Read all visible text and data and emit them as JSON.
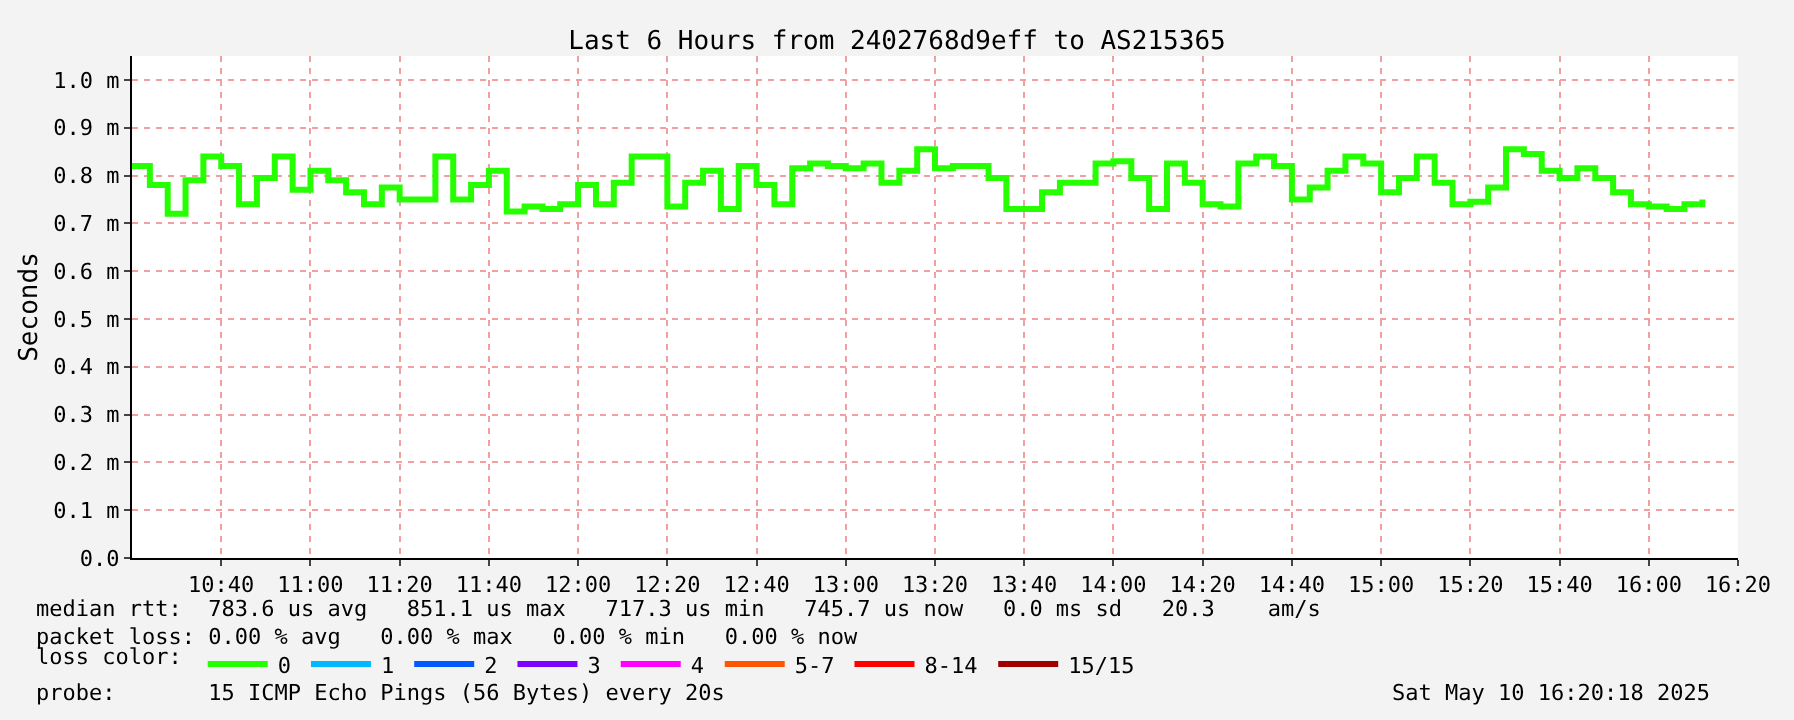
{
  "chart_data": {
    "type": "step",
    "title": "Last 6 Hours from 2402768d9eff to AS215365",
    "ylabel": "Seconds",
    "x": [
      10.3333,
      10.4,
      10.4667,
      10.5333,
      10.6,
      10.6667,
      10.7333,
      10.8,
      10.8667,
      10.9333,
      11.0,
      11.0667,
      11.1333,
      11.2,
      11.2667,
      11.3333,
      11.4,
      11.4667,
      11.5333,
      11.6,
      11.6667,
      11.7333,
      11.8,
      11.8667,
      11.9333,
      12.0,
      12.0667,
      12.1333,
      12.2,
      12.2667,
      12.3333,
      12.4,
      12.4667,
      12.5333,
      12.6,
      12.6667,
      12.7333,
      12.8,
      12.8667,
      12.9333,
      13.0,
      13.0667,
      13.1333,
      13.2,
      13.2667,
      13.3333,
      13.4,
      13.4667,
      13.5333,
      13.6,
      13.6667,
      13.7333,
      13.8,
      13.8667,
      13.9333,
      14.0,
      14.0667,
      14.1333,
      14.2,
      14.2667,
      14.3333,
      14.4,
      14.4667,
      14.5333,
      14.6,
      14.6667,
      14.7333,
      14.8,
      14.8667,
      14.9333,
      15.0,
      15.0667,
      15.1333,
      15.2,
      15.2667,
      15.3333,
      15.4,
      15.4667,
      15.5333,
      15.6,
      15.6667,
      15.7333,
      15.8,
      15.8667,
      15.9333,
      16.0,
      16.0667,
      16.1333,
      16.2
    ],
    "series": [
      {
        "name": "0",
        "color": "#26ff00",
        "values": [
          0.82,
          0.78,
          0.72,
          0.79,
          0.84,
          0.82,
          0.74,
          0.795,
          0.84,
          0.77,
          0.81,
          0.79,
          0.765,
          0.74,
          0.775,
          0.75,
          0.75,
          0.84,
          0.75,
          0.78,
          0.81,
          0.725,
          0.735,
          0.73,
          0.74,
          0.78,
          0.74,
          0.785,
          0.84,
          0.84,
          0.735,
          0.785,
          0.81,
          0.73,
          0.82,
          0.78,
          0.74,
          0.815,
          0.825,
          0.82,
          0.815,
          0.825,
          0.785,
          0.81,
          0.855,
          0.815,
          0.82,
          0.82,
          0.795,
          0.73,
          0.73,
          0.765,
          0.785,
          0.785,
          0.825,
          0.83,
          0.795,
          0.73,
          0.825,
          0.785,
          0.74,
          0.735,
          0.825,
          0.84,
          0.82,
          0.75,
          0.775,
          0.81,
          0.84,
          0.825,
          0.765,
          0.795,
          0.84,
          0.785,
          0.74,
          0.745,
          0.775,
          0.855,
          0.845,
          0.81,
          0.795,
          0.815,
          0.795,
          0.765,
          0.74,
          0.735,
          0.73,
          0.74,
          0.75
        ]
      },
      {
        "name": "1",
        "color": "#00b8ff",
        "values": [
          null,
          null,
          null,
          null,
          null,
          null,
          null,
          null,
          null,
          null,
          null,
          null,
          null,
          null,
          null,
          null,
          null,
          null,
          null,
          null,
          null,
          null,
          null,
          null,
          null,
          null,
          null,
          null,
          null,
          null,
          null,
          null,
          null,
          null,
          null,
          null,
          null,
          null,
          null,
          null,
          null,
          null,
          null,
          null,
          null,
          null,
          null,
          null,
          null,
          null,
          null,
          null,
          null,
          null,
          null,
          null,
          null,
          null,
          null,
          null,
          null,
          null,
          null,
          null,
          null,
          null,
          null,
          null,
          null,
          null,
          null,
          null,
          null,
          null,
          null,
          null,
          null,
          null,
          null,
          null,
          null,
          null,
          null,
          null,
          null,
          null,
          null,
          null,
          null
        ]
      },
      {
        "name": "2",
        "color": "#0059ff",
        "values": [
          null,
          null,
          null,
          null,
          null,
          null,
          null,
          null,
          null,
          null,
          null,
          null,
          null,
          null,
          null,
          null,
          null,
          null,
          null,
          null,
          null,
          null,
          null,
          null,
          null,
          null,
          null,
          null,
          null,
          null,
          null,
          null,
          null,
          null,
          null,
          null,
          null,
          null,
          null,
          null,
          null,
          null,
          null,
          null,
          null,
          null,
          null,
          null,
          null,
          null,
          null,
          null,
          null,
          null,
          null,
          null,
          null,
          null,
          null,
          null,
          null,
          null,
          null,
          null,
          null,
          null,
          null,
          null,
          null,
          null,
          null,
          null,
          null,
          null,
          null,
          null,
          null,
          null,
          null,
          null,
          null,
          null,
          null,
          null,
          null,
          null,
          null,
          null,
          null
        ]
      },
      {
        "name": "3",
        "color": "#7e00ff",
        "values": [
          null,
          null,
          null,
          null,
          null,
          null,
          null,
          null,
          null,
          null,
          null,
          null,
          null,
          null,
          null,
          null,
          null,
          null,
          null,
          null,
          null,
          null,
          null,
          null,
          null,
          null,
          null,
          null,
          null,
          null,
          null,
          null,
          null,
          null,
          null,
          null,
          null,
          null,
          null,
          null,
          null,
          null,
          null,
          null,
          null,
          null,
          null,
          null,
          null,
          null,
          null,
          null,
          null,
          null,
          null,
          null,
          null,
          null,
          null,
          null,
          null,
          null,
          null,
          null,
          null,
          null,
          null,
          null,
          null,
          null,
          null,
          null,
          null,
          null,
          null,
          null,
          null,
          null,
          null,
          null,
          null,
          null,
          null,
          null,
          null,
          null,
          null,
          null,
          null
        ]
      },
      {
        "name": "4",
        "color": "#ff00ff",
        "values": [
          null,
          null,
          null,
          null,
          null,
          null,
          null,
          null,
          null,
          null,
          null,
          null,
          null,
          null,
          null,
          null,
          null,
          null,
          null,
          null,
          null,
          null,
          null,
          null,
          null,
          null,
          null,
          null,
          null,
          null,
          null,
          null,
          null,
          null,
          null,
          null,
          null,
          null,
          null,
          null,
          null,
          null,
          null,
          null,
          null,
          null,
          null,
          null,
          null,
          null,
          null,
          null,
          null,
          null,
          null,
          null,
          null,
          null,
          null,
          null,
          null,
          null,
          null,
          null,
          null,
          null,
          null,
          null,
          null,
          null,
          null,
          null,
          null,
          null,
          null,
          null,
          null,
          null,
          null,
          null,
          null,
          null,
          null,
          null,
          null,
          null,
          null,
          null,
          null
        ]
      },
      {
        "name": "5-7",
        "color": "#ff5500",
        "values": [
          null,
          null,
          null,
          null,
          null,
          null,
          null,
          null,
          null,
          null,
          null,
          null,
          null,
          null,
          null,
          null,
          null,
          null,
          null,
          null,
          null,
          null,
          null,
          null,
          null,
          null,
          null,
          null,
          null,
          null,
          null,
          null,
          null,
          null,
          null,
          null,
          null,
          null,
          null,
          null,
          null,
          null,
          null,
          null,
          null,
          null,
          null,
          null,
          null,
          null,
          null,
          null,
          null,
          null,
          null,
          null,
          null,
          null,
          null,
          null,
          null,
          null,
          null,
          null,
          null,
          null,
          null,
          null,
          null,
          null,
          null,
          null,
          null,
          null,
          null,
          null,
          null,
          null,
          null,
          null,
          null,
          null,
          null,
          null,
          null,
          null,
          null,
          null,
          null
        ]
      },
      {
        "name": "8-14",
        "color": "#ff0000",
        "values": [
          null,
          null,
          null,
          null,
          null,
          null,
          null,
          null,
          null,
          null,
          null,
          null,
          null,
          null,
          null,
          null,
          null,
          null,
          null,
          null,
          null,
          null,
          null,
          null,
          null,
          null,
          null,
          null,
          null,
          null,
          null,
          null,
          null,
          null,
          null,
          null,
          null,
          null,
          null,
          null,
          null,
          null,
          null,
          null,
          null,
          null,
          null,
          null,
          null,
          null,
          null,
          null,
          null,
          null,
          null,
          null,
          null,
          null,
          null,
          null,
          null,
          null,
          null,
          null,
          null,
          null,
          null,
          null,
          null,
          null,
          null,
          null,
          null,
          null,
          null,
          null,
          null,
          null,
          null,
          null,
          null,
          null,
          null,
          null,
          null,
          null,
          null,
          null,
          null
        ]
      },
      {
        "name": "15/15",
        "color": "#a10000",
        "values": [
          null,
          null,
          null,
          null,
          null,
          null,
          null,
          null,
          null,
          null,
          null,
          null,
          null,
          null,
          null,
          null,
          null,
          null,
          null,
          null,
          null,
          null,
          null,
          null,
          null,
          null,
          null,
          null,
          null,
          null,
          null,
          null,
          null,
          null,
          null,
          null,
          null,
          null,
          null,
          null,
          null,
          null,
          null,
          null,
          null,
          null,
          null,
          null,
          null,
          null,
          null,
          null,
          null,
          null,
          null,
          null,
          null,
          null,
          null,
          null,
          null,
          null,
          null,
          null,
          null,
          null,
          null,
          null,
          null,
          null,
          null,
          null,
          null,
          null,
          null,
          null,
          null,
          null,
          null,
          null,
          null,
          null,
          null,
          null,
          null,
          null,
          null,
          null,
          null
        ]
      }
    ],
    "legend_title": "loss color:",
    "legend": "bottom",
    "marker": "none",
    "line_style": "solid",
    "grid": true,
    "xlim": [
      10.3333,
      16.3333
    ],
    "xticks": [
      {
        "value": 10.6667,
        "label": "10:40"
      },
      {
        "value": 11.0,
        "label": "11:00"
      },
      {
        "value": 11.3333,
        "label": "11:20"
      },
      {
        "value": 11.6667,
        "label": "11:40"
      },
      {
        "value": 12.0,
        "label": "12:00"
      },
      {
        "value": 12.3333,
        "label": "12:20"
      },
      {
        "value": 12.6667,
        "label": "12:40"
      },
      {
        "value": 13.0,
        "label": "13:00"
      },
      {
        "value": 13.3333,
        "label": "13:20"
      },
      {
        "value": 13.6667,
        "label": "13:40"
      },
      {
        "value": 14.0,
        "label": "14:00"
      },
      {
        "value": 14.3333,
        "label": "14:20"
      },
      {
        "value": 14.6667,
        "label": "14:40"
      },
      {
        "value": 15.0,
        "label": "15:00"
      },
      {
        "value": 15.3333,
        "label": "15:20"
      },
      {
        "value": 15.6667,
        "label": "15:40"
      },
      {
        "value": 16.0,
        "label": "16:00"
      },
      {
        "value": 16.3333,
        "label": "16:20"
      }
    ],
    "ylim": [
      0,
      1.05
    ],
    "yticks": [
      {
        "value": 0,
        "label": "0.0"
      },
      {
        "value": 0.1,
        "label": "0.1 m"
      },
      {
        "value": 0.2,
        "label": "0.2 m"
      },
      {
        "value": 0.3,
        "label": "0.3 m"
      },
      {
        "value": 0.4,
        "label": "0.4 m"
      },
      {
        "value": 0.5,
        "label": "0.5 m"
      },
      {
        "value": 0.6,
        "label": "0.6 m"
      },
      {
        "value": 0.7,
        "label": "0.7 m"
      },
      {
        "value": 0.8,
        "label": "0.8 m"
      },
      {
        "value": 0.9,
        "label": "0.9 m"
      },
      {
        "value": 1.0,
        "label": "1.0 m"
      }
    ],
    "annotations": [
      "median rtt:  783.6 us avg   851.1 us max   717.3 us min   745.7 us now   0.0 ms sd   20.3    am/s",
      "packet loss: 0.00 % avg   0.00 % max   0.00 % min   0.00 % now",
      "probe:       15 ICMP Echo Pings (56 Bytes) every 20s",
      "Sat May 10 16:20:18 2025"
    ]
  }
}
